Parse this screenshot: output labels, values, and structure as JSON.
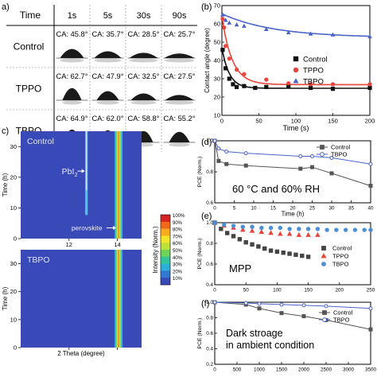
{
  "panel_labels": {
    "a": "a)",
    "b": "(b)",
    "c": "c)",
    "d": "(d)",
    "e": "(e)",
    "f": "(f)"
  },
  "panel_a": {
    "header_row_label": "Time",
    "time_headers": [
      "1s",
      "5s",
      "30s",
      "90s"
    ],
    "rows": [
      {
        "name": "Control",
        "cas": [
          "CA: 45.8°",
          "CA: 35.7°",
          "CA: 28.5°",
          "CA: 25.7°"
        ]
      },
      {
        "name": "TPPO",
        "cas": [
          "CA: 62.7°",
          "CA: 47.9°",
          "CA: 32.5°",
          "CA: 27.5°"
        ]
      },
      {
        "name": "TBPO",
        "cas": [
          "CA: 64.9°",
          "CA: 62.0°",
          "CA: 58.8°",
          "CA: 55.2°"
        ]
      }
    ]
  },
  "chart_data": [
    {
      "panel": "b",
      "type": "scatter",
      "xlabel": "Time (s)",
      "ylabel": "Contact angle (degree)",
      "xlim": [
        0,
        200
      ],
      "ylim": [
        10,
        70
      ],
      "xticks": [
        "0",
        "50",
        "100",
        "150",
        "200"
      ],
      "yticks": [
        "10",
        "20",
        "30",
        "40",
        "50",
        "60",
        "70"
      ],
      "legend_position": "middle-right",
      "series": [
        {
          "name": "Control",
          "color": "#111111",
          "marker": "square",
          "x": [
            1,
            5,
            10,
            15,
            20,
            30,
            45,
            60,
            90,
            120,
            150,
            200
          ],
          "y": [
            45.8,
            35.7,
            30,
            27,
            25.5,
            26,
            25,
            25.5,
            25.7,
            25,
            24.5,
            25
          ]
        },
        {
          "name": "TPPO",
          "color": "#e8453c",
          "marker": "circle",
          "x": [
            1,
            3,
            5,
            10,
            20,
            30,
            60,
            90,
            120,
            150,
            200
          ],
          "y": [
            62.7,
            58,
            47.9,
            41,
            35,
            32.5,
            29.5,
            27.5,
            27,
            27,
            27
          ]
        },
        {
          "name": "TBPO",
          "color": "#4a63c8",
          "marker": "triangle",
          "x": [
            1,
            5,
            10,
            20,
            30,
            60,
            90,
            120,
            150,
            200
          ],
          "y": [
            64.9,
            62,
            60.5,
            59.5,
            58.8,
            57,
            55.2,
            54.5,
            54,
            53
          ]
        }
      ]
    },
    {
      "panel": "c",
      "type": "heatmap",
      "xlabel": "2 Theta (degree)",
      "ylabel": "Time (h)",
      "xlim": [
        10,
        15
      ],
      "ylim": [
        0,
        35
      ],
      "xticks": [
        "12",
        "14"
      ],
      "yticks": [
        "0",
        "10",
        "20",
        "30"
      ],
      "subplots": [
        "Control",
        "TBPO"
      ],
      "annotations": [
        "PbI",
        "perovskite"
      ],
      "colorbar": {
        "label": "Intensity (Norm.)",
        "ticks": [
          "100%",
          "90%",
          "80%",
          "70%",
          "60%",
          "50%",
          "40%",
          "30%",
          "20%",
          "10%"
        ]
      }
    },
    {
      "panel": "d",
      "type": "line",
      "xlabel": "Time (h)",
      "ylabel": "PCE (Norm.)",
      "xlim": [
        0,
        40
      ],
      "ylim": [
        0.6,
        1.0
      ],
      "xticks": [
        "0",
        "5",
        "10",
        "15",
        "20",
        "25",
        "30",
        "35",
        "40"
      ],
      "yticks": [
        "0.6",
        "0.8",
        "1.0"
      ],
      "legend_position": "top-right",
      "annotation": "60 °C and 60% RH",
      "series": [
        {
          "name": "Control",
          "color": "#555555",
          "marker": "square",
          "x": [
            0,
            1,
            3,
            8,
            22,
            25,
            30,
            40
          ],
          "y": [
            1.0,
            0.87,
            0.85,
            0.84,
            0.82,
            0.83,
            0.79,
            0.71
          ]
        },
        {
          "name": "TBPO",
          "color": "#4a63c8",
          "marker": "circle",
          "x": [
            0,
            1,
            3,
            8,
            22,
            25,
            30,
            40
          ],
          "y": [
            1.0,
            0.95,
            0.93,
            0.92,
            0.9,
            0.9,
            0.89,
            0.85
          ]
        }
      ]
    },
    {
      "panel": "e",
      "type": "scatter",
      "xlabel": "",
      "ylabel": "PCE (Norm.)",
      "xlim": [
        0,
        250
      ],
      "ylim": [
        0.4,
        1.0
      ],
      "xticks": [
        "0",
        "50",
        "100",
        "150",
        "200",
        "250"
      ],
      "yticks": [
        "0.4",
        "0.6",
        "0.8",
        "1.0"
      ],
      "legend_position": "right",
      "annotation": "MPP",
      "series": [
        {
          "name": "Control",
          "color": "#444444",
          "marker": "square",
          "x": [
            0,
            10,
            20,
            30,
            40,
            50,
            60,
            70,
            80,
            90,
            100,
            110,
            120,
            130,
            140,
            150
          ],
          "y": [
            1.0,
            0.94,
            0.9,
            0.87,
            0.84,
            0.81,
            0.79,
            0.77,
            0.75,
            0.73,
            0.72,
            0.71,
            0.7,
            0.69,
            0.68,
            0.67
          ]
        },
        {
          "name": "TPPO",
          "color": "#e8453c",
          "marker": "triangle",
          "x": [
            0,
            15,
            30,
            45,
            60,
            75,
            90,
            105,
            120,
            135,
            150,
            165
          ],
          "y": [
            1.0,
            0.97,
            0.95,
            0.93,
            0.92,
            0.91,
            0.9,
            0.89,
            0.89,
            0.88,
            0.88,
            0.88
          ]
        },
        {
          "name": "TBPO",
          "color": "#4a8fd8",
          "marker": "circle",
          "x": [
            0,
            15,
            30,
            45,
            60,
            75,
            90,
            105,
            120,
            135,
            150,
            165,
            180,
            195,
            210,
            225,
            240,
            250
          ],
          "y": [
            1.0,
            0.98,
            0.97,
            0.96,
            0.96,
            0.95,
            0.95,
            0.95,
            0.94,
            0.94,
            0.94,
            0.94,
            0.93,
            0.93,
            0.93,
            0.93,
            0.93,
            0.93
          ]
        }
      ]
    },
    {
      "panel": "f",
      "type": "line",
      "xlabel": "",
      "ylabel": "PCE (Norm.)",
      "xlim": [
        0,
        3500
      ],
      "ylim": [
        0.2,
        1.0
      ],
      "xticks": [
        "0",
        "500",
        "1000",
        "1500",
        "2000",
        "2500",
        "3000",
        "3500"
      ],
      "yticks": [
        "0.2",
        "0.4",
        "0.6",
        "0.8",
        "1.0"
      ],
      "legend_position": "top-right",
      "annotation": [
        "Dark stroage",
        "in ambient condition"
      ],
      "series": [
        {
          "name": "Control",
          "color": "#555555",
          "marker": "square",
          "x": [
            0,
            700,
            1000,
            1500,
            2000,
            2500,
            3500
          ],
          "y": [
            1.0,
            0.97,
            0.92,
            0.86,
            0.82,
            0.77,
            0.65
          ]
        },
        {
          "name": "TBPO",
          "color": "#4a63c8",
          "marker": "circle",
          "x": [
            0,
            700,
            1000,
            1500,
            2000,
            2500,
            3500
          ],
          "y": [
            1.0,
            0.99,
            0.98,
            0.97,
            0.96,
            0.95,
            0.92
          ]
        }
      ]
    }
  ]
}
